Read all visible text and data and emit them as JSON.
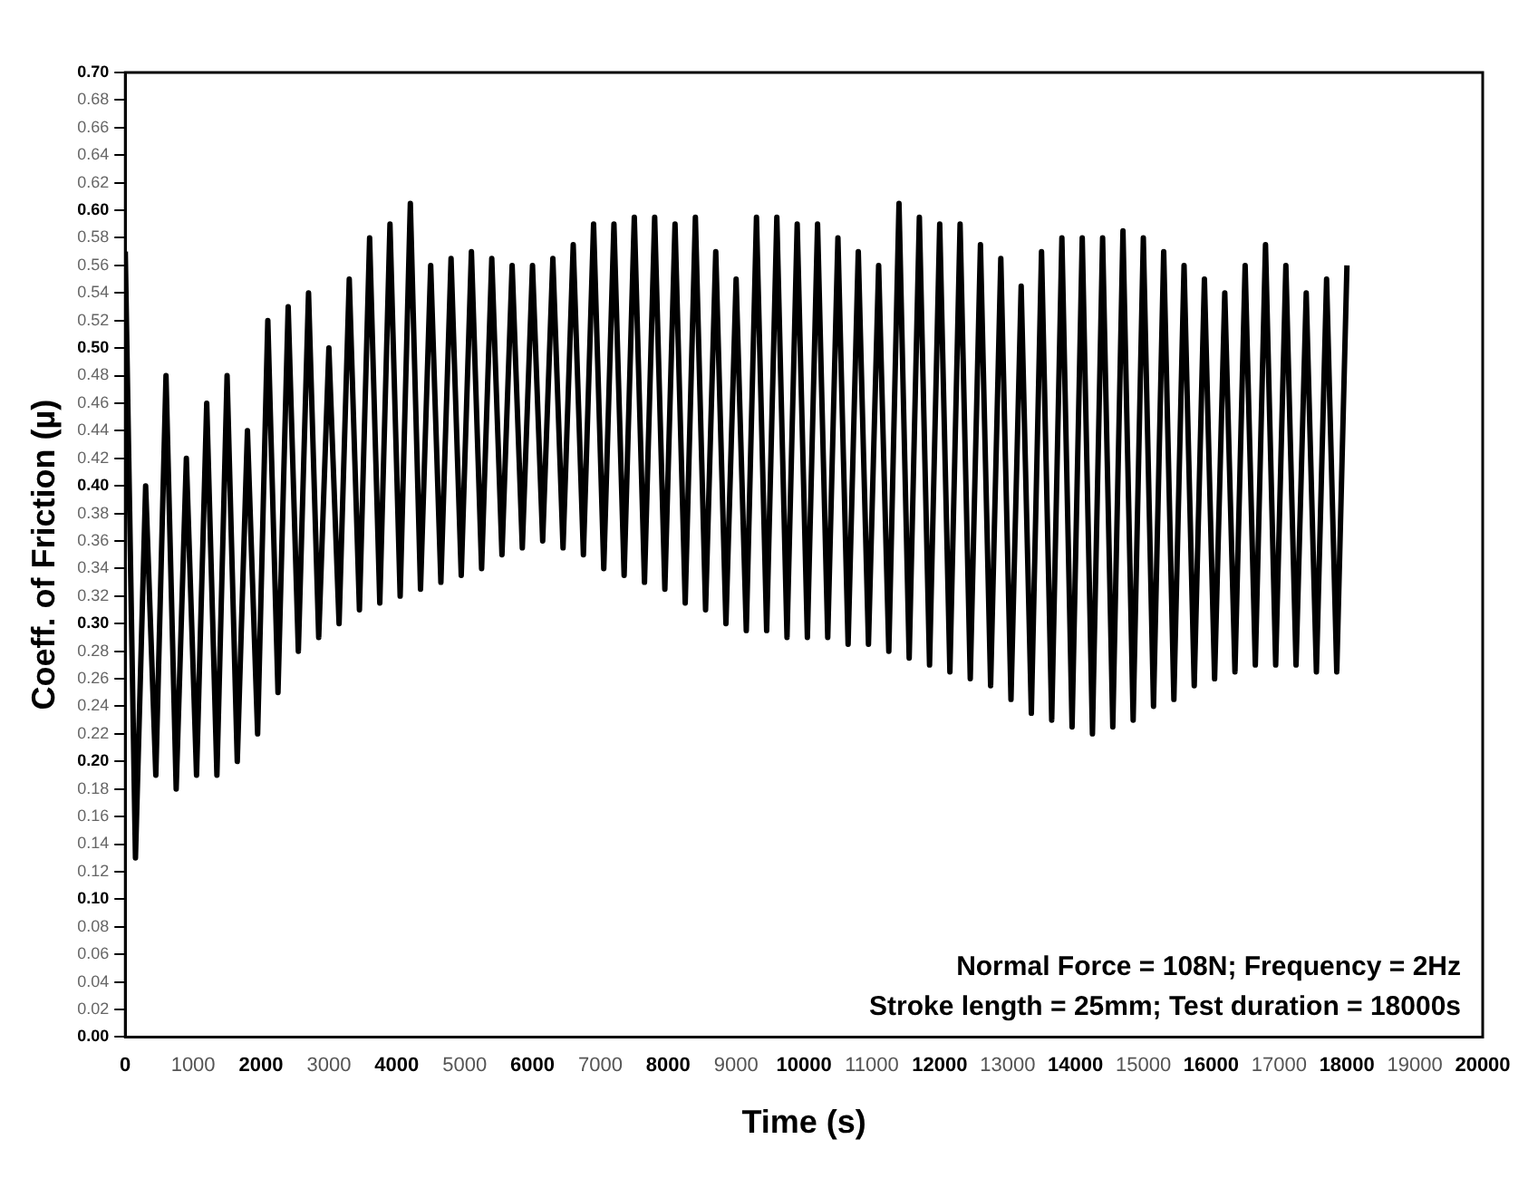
{
  "chart_data": {
    "type": "line",
    "xlabel": "Time (s)",
    "ylabel": "Coeff. of Friction (µ)",
    "annotations": [
      "Normal Force = 108N; Frequency = 2Hz",
      "Stroke length = 25mm; Test duration = 18000s"
    ],
    "xlim": [
      0,
      20000
    ],
    "xticks": [
      0,
      1000,
      2000,
      3000,
      4000,
      5000,
      6000,
      7000,
      8000,
      9000,
      10000,
      11000,
      12000,
      13000,
      14000,
      15000,
      16000,
      17000,
      18000,
      19000,
      20000
    ],
    "ylim": [
      0,
      0.7
    ],
    "yticks": [
      {
        "value": 0,
        "label": "0.00"
      },
      {
        "value": 0.02,
        "label": "0.02"
      },
      {
        "value": 0.04,
        "label": "0.04"
      },
      {
        "value": 0.06,
        "label": "0.06"
      },
      {
        "value": 0.08,
        "label": "0.08"
      },
      {
        "value": 0.1,
        "label": "0.10"
      },
      {
        "value": 0.12,
        "label": "0.12"
      },
      {
        "value": 0.14,
        "label": "0.14"
      },
      {
        "value": 0.16,
        "label": "0.16"
      },
      {
        "value": 0.18,
        "label": "0.18"
      },
      {
        "value": 0.2,
        "label": "0.20"
      },
      {
        "value": 0.22,
        "label": "0.22"
      },
      {
        "value": 0.24,
        "label": "0.24"
      },
      {
        "value": 0.26,
        "label": "0.26"
      },
      {
        "value": 0.28,
        "label": "0.28"
      },
      {
        "value": 0.3,
        "label": "0.30"
      },
      {
        "value": 0.32,
        "label": "0.32"
      },
      {
        "value": 0.34,
        "label": "0.34"
      },
      {
        "value": 0.36,
        "label": "0.36"
      },
      {
        "value": 0.38,
        "label": "0.38"
      },
      {
        "value": 0.4,
        "label": "0.40"
      },
      {
        "value": 0.42,
        "label": "0.42"
      },
      {
        "value": 0.44,
        "label": "0.44"
      },
      {
        "value": 0.46,
        "label": "0.46"
      },
      {
        "value": 0.48,
        "label": "0.48"
      },
      {
        "value": 0.5,
        "label": "0.50"
      },
      {
        "value": 0.52,
        "label": "0.52"
      },
      {
        "value": 0.54,
        "label": "0.54"
      },
      {
        "value": 0.56,
        "label": "0.56"
      },
      {
        "value": 0.58,
        "label": "0.58"
      },
      {
        "value": 0.6,
        "label": "0.60"
      },
      {
        "value": 0.62,
        "label": "0.62"
      },
      {
        "value": 0.64,
        "label": "0.64"
      },
      {
        "value": 0.66,
        "label": "0.66"
      },
      {
        "value": 0.68,
        "label": "0.68"
      },
      {
        "value": 0.7,
        "label": "0.70"
      }
    ],
    "grid": false,
    "legend": false,
    "marker": "none",
    "line_style": "solid",
    "x": [
      0,
      150,
      300,
      450,
      600,
      750,
      900,
      1050,
      1200,
      1350,
      1500,
      1650,
      1800,
      1950,
      2100,
      2250,
      2400,
      2550,
      2700,
      2850,
      3000,
      3150,
      3300,
      3450,
      3600,
      3750,
      3900,
      4050,
      4200,
      4350,
      4500,
      4650,
      4800,
      4950,
      5100,
      5250,
      5400,
      5550,
      5700,
      5850,
      6000,
      6150,
      6300,
      6450,
      6600,
      6750,
      6900,
      7050,
      7200,
      7350,
      7500,
      7650,
      7800,
      7950,
      8100,
      8250,
      8400,
      8550,
      8700,
      8850,
      9000,
      9150,
      9300,
      9450,
      9600,
      9750,
      9900,
      10050,
      10200,
      10350,
      10500,
      10650,
      10800,
      10950,
      11100,
      11250,
      11400,
      11550,
      11700,
      11850,
      12000,
      12150,
      12300,
      12450,
      12600,
      12750,
      12900,
      13050,
      13200,
      13350,
      13500,
      13650,
      13800,
      13950,
      14100,
      14250,
      14400,
      14550,
      14700,
      14850,
      15000,
      15150,
      15300,
      15450,
      15600,
      15750,
      15900,
      16050,
      16200,
      16350,
      16500,
      16650,
      16800,
      16950,
      17100,
      17250,
      17400,
      17550,
      17700,
      17850,
      18000
    ],
    "series": [
      {
        "color": "#000000",
        "values": [
          0.57,
          0.13,
          0.4,
          0.19,
          0.48,
          0.18,
          0.42,
          0.19,
          0.46,
          0.19,
          0.48,
          0.2,
          0.44,
          0.22,
          0.52,
          0.25,
          0.53,
          0.28,
          0.54,
          0.29,
          0.5,
          0.3,
          0.55,
          0.31,
          0.58,
          0.315,
          0.59,
          0.32,
          0.605,
          0.325,
          0.56,
          0.33,
          0.565,
          0.335,
          0.57,
          0.34,
          0.565,
          0.35,
          0.56,
          0.355,
          0.56,
          0.36,
          0.565,
          0.355,
          0.575,
          0.35,
          0.59,
          0.34,
          0.59,
          0.335,
          0.595,
          0.33,
          0.595,
          0.325,
          0.59,
          0.315,
          0.595,
          0.31,
          0.57,
          0.3,
          0.55,
          0.295,
          0.595,
          0.295,
          0.595,
          0.29,
          0.59,
          0.29,
          0.59,
          0.29,
          0.58,
          0.285,
          0.57,
          0.285,
          0.56,
          0.28,
          0.605,
          0.275,
          0.595,
          0.27,
          0.59,
          0.265,
          0.59,
          0.26,
          0.575,
          0.255,
          0.565,
          0.245,
          0.545,
          0.235,
          0.57,
          0.23,
          0.58,
          0.225,
          0.58,
          0.22,
          0.58,
          0.225,
          0.585,
          0.23,
          0.58,
          0.24,
          0.57,
          0.245,
          0.56,
          0.255,
          0.55,
          0.26,
          0.54,
          0.265,
          0.56,
          0.27,
          0.575,
          0.27,
          0.56,
          0.27,
          0.54,
          0.265,
          0.55,
          0.265,
          0.56
        ]
      }
    ]
  }
}
